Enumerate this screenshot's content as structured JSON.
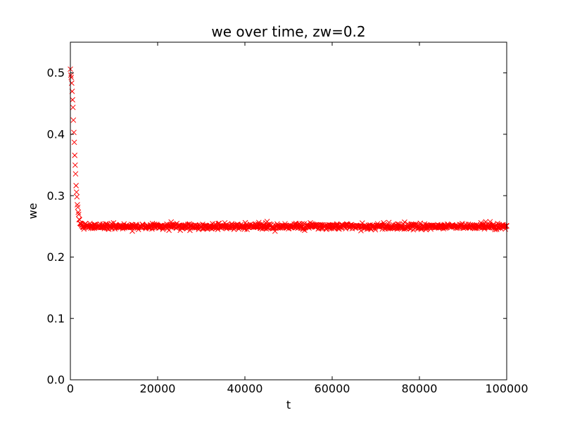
{
  "chart_data": {
    "type": "scatter",
    "title": "we over time, zw=0.2",
    "xlabel": "t",
    "ylabel": "we",
    "xlim": [
      0,
      100000
    ],
    "ylim": [
      0.0,
      0.55
    ],
    "xticks": [
      0,
      20000,
      40000,
      60000,
      80000,
      100000
    ],
    "yticks": [
      0.0,
      0.1,
      0.2,
      0.3,
      0.4,
      0.5
    ],
    "x_tick_format": "integer",
    "y_tick_format": "one-decimal",
    "grid": false,
    "legend": null,
    "marker": "x",
    "marker_color": "#ff0000",
    "marker_size": 7,
    "marker_stroke_width": 1,
    "background": "#ffffff",
    "frame_color": "#000000",
    "tick_direction": "in",
    "tick_length": 5,
    "series": [
      {
        "name": "we",
        "model": {
          "kind": "gaussian-relaxation-to-asymptote",
          "start_value": 0.5,
          "asymptote": 0.25,
          "decay_scale_t": 1150,
          "t_min": 0,
          "t_max": 100000,
          "t_step": 100,
          "noise_std": 0.0022,
          "outlier_rate": 0.04,
          "outlier_max_drop": 0.006,
          "seed": 7
        },
        "anchor_points": [
          [
            0,
            0.5
          ],
          [
            400,
            0.471
          ],
          [
            800,
            0.404
          ],
          [
            1200,
            0.334
          ],
          [
            1600,
            0.286
          ],
          [
            2000,
            0.262
          ],
          [
            2600,
            0.252
          ],
          [
            5000,
            0.25
          ],
          [
            50000,
            0.25
          ],
          [
            100000,
            0.25
          ]
        ]
      }
    ]
  }
}
